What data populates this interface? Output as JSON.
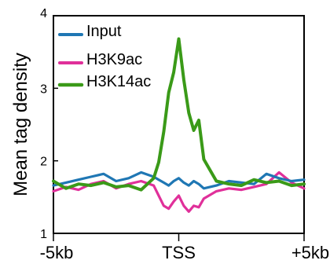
{
  "chart_data": {
    "type": "line",
    "ylabel": "Mean tag density",
    "xlabel": "",
    "ylim": [
      1,
      4
    ],
    "y_ticks": [
      "1",
      "2",
      "3",
      "4"
    ],
    "x_ticks": [
      "-5kb",
      "TSS",
      "+5kb"
    ],
    "x": [
      -5.0,
      -4.5,
      -4.0,
      -3.5,
      -3.0,
      -2.5,
      -2.0,
      -1.5,
      -1.0,
      -0.8,
      -0.6,
      -0.4,
      -0.2,
      0.0,
      0.2,
      0.4,
      0.6,
      0.8,
      1.0,
      1.5,
      2.0,
      2.5,
      3.0,
      3.5,
      4.0,
      4.5,
      5.0
    ],
    "series": [
      {
        "name": "Input",
        "color": "#1f77b4",
        "values": [
          1.66,
          1.7,
          1.74,
          1.78,
          1.82,
          1.72,
          1.76,
          1.84,
          1.78,
          1.74,
          1.7,
          1.66,
          1.72,
          1.76,
          1.7,
          1.66,
          1.72,
          1.68,
          1.62,
          1.66,
          1.72,
          1.7,
          1.68,
          1.82,
          1.76,
          1.72,
          1.74
        ]
      },
      {
        "name": "H3K9ac",
        "color": "#e0309a",
        "values": [
          1.58,
          1.64,
          1.6,
          1.68,
          1.72,
          1.62,
          1.68,
          1.72,
          1.66,
          1.52,
          1.38,
          1.34,
          1.44,
          1.52,
          1.38,
          1.3,
          1.38,
          1.36,
          1.48,
          1.58,
          1.62,
          1.6,
          1.64,
          1.68,
          1.84,
          1.7,
          1.62
        ]
      },
      {
        "name": "H3K14ac",
        "color": "#3a9a18",
        "values": [
          1.72,
          1.62,
          1.68,
          1.66,
          1.7,
          1.64,
          1.66,
          1.6,
          1.76,
          1.98,
          2.4,
          2.94,
          3.22,
          3.68,
          3.12,
          2.66,
          2.42,
          2.56,
          2.02,
          1.72,
          1.68,
          1.66,
          1.74,
          1.7,
          1.72,
          1.66,
          1.68
        ]
      }
    ],
    "legend_position": "top-left"
  }
}
